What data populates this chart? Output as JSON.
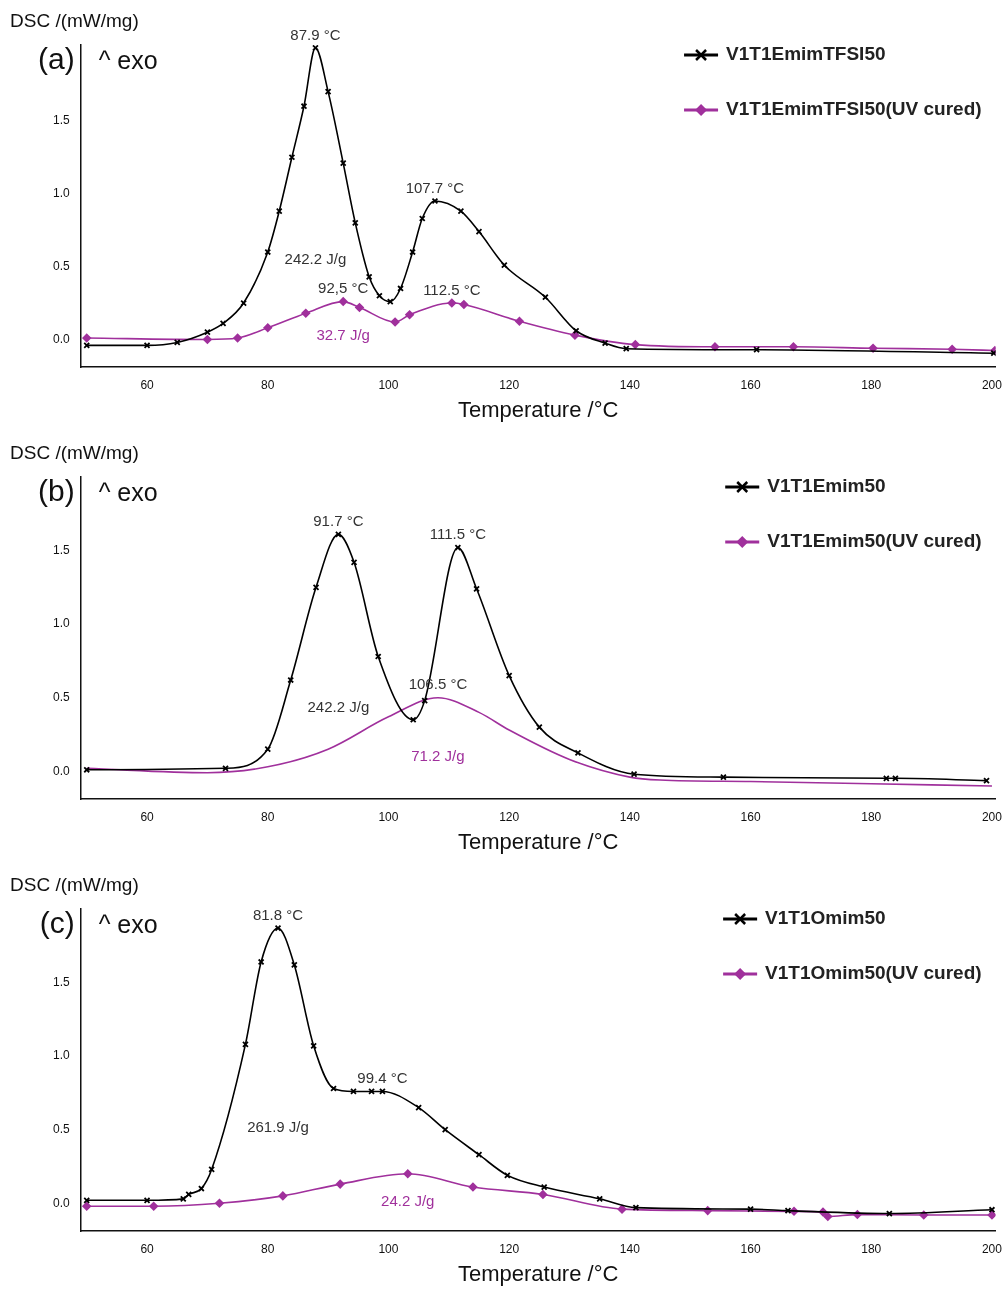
{
  "chart_data": [
    {
      "type": "line",
      "title": "(a)",
      "xlabel": "Temperature /°C",
      "ylabel": "DSC /(mW/mg)",
      "xlim": [
        49,
        200.6
      ],
      "xticks": [
        60,
        80,
        100,
        120,
        140,
        160,
        180,
        200
      ],
      "ylim": [
        -0.19,
        2.02
      ],
      "yticks": [
        {
          "value": 0,
          "label": "0.0"
        },
        {
          "value": 0.5,
          "label": "0.5"
        },
        {
          "value": 1,
          "label": "1.0"
        },
        {
          "value": 1.5,
          "label": "1.5"
        }
      ],
      "grid": false,
      "legend": "top right",
      "series": [
        {
          "name": "V1T1EmimTFSI50",
          "color": "#000000",
          "marker": "cross",
          "x": [
            50,
            60,
            65,
            70,
            72.6,
            76,
            80,
            81.9,
            84,
            86,
            87.9,
            90,
            92.5,
            94.5,
            96.8,
            98.5,
            100.3,
            102,
            104,
            105.6,
            107.7,
            112,
            115,
            119.2,
            126,
            131.1,
            135.9,
            139.4,
            161,
            200.3
          ],
          "values": [
            -0.04,
            -0.04,
            -0.02,
            0.05,
            0.11,
            0.25,
            0.6,
            0.88,
            1.25,
            1.6,
            2.0,
            1.7,
            1.21,
            0.8,
            0.43,
            0.3,
            0.26,
            0.35,
            0.6,
            0.83,
            0.95,
            0.88,
            0.74,
            0.51,
            0.29,
            0.06,
            -0.025,
            -0.063,
            -0.07,
            -0.094
          ]
        },
        {
          "name": "V1T1EmimTFSI50(UV cured)",
          "color": "#a0309c",
          "marker": "diamond",
          "x": [
            50,
            70,
            75,
            80,
            86.3,
            92.5,
            95.2,
            101.1,
            103.5,
            110.5,
            112.5,
            121.7,
            130.9,
            140.9,
            154.1,
            167.1,
            180.3,
            193.4,
            200.5
          ],
          "values": [
            0.01,
            0.0,
            0.01,
            0.08,
            0.18,
            0.26,
            0.22,
            0.12,
            0.17,
            0.25,
            0.24,
            0.125,
            0.03,
            -0.035,
            -0.05,
            -0.05,
            -0.06,
            -0.067,
            -0.075
          ]
        }
      ],
      "annotations": [
        "^ exo",
        {
          "text": "87.9 °C",
          "x": 87.9,
          "y": 2.0
        },
        {
          "text": "107.7 °C",
          "x": 107.7,
          "y": 0.95
        },
        "242.2 J/g",
        {
          "text": "92,5 °C",
          "x": 92.5,
          "y": 0.26
        },
        {
          "text": "112.5 °C",
          "x": 110.5,
          "y": 0.25
        },
        "32.7 J/g"
      ]
    },
    {
      "type": "line",
      "title": "(b)",
      "xlabel": "Temperature /°C",
      "ylabel": "DSC /(mW/mg)",
      "xlim": [
        49,
        200.6
      ],
      "xticks": [
        60,
        80,
        100,
        120,
        140,
        160,
        180,
        200
      ],
      "ylim": [
        -0.19,
        2.0
      ],
      "yticks": [
        {
          "value": 0,
          "label": "0.0"
        },
        {
          "value": 0.5,
          "label": "0.5"
        },
        {
          "value": 1,
          "label": "1.0"
        },
        {
          "value": 1.5,
          "label": "1.5"
        }
      ],
      "grid": false,
      "legend": "top right",
      "series": [
        {
          "name": "V1T1Emim50",
          "color": "#000000",
          "marker": "cross",
          "x": [
            50,
            73,
            80,
            83.8,
            88,
            91.7,
            94.3,
            98.3,
            104.1,
            106,
            111.5,
            114.6,
            120,
            125,
            131.4,
            140.7,
            155.5,
            182.5,
            184,
            199.1
          ],
          "values": [
            0.01,
            0.02,
            0.15,
            0.62,
            1.25,
            1.61,
            1.42,
            0.78,
            0.35,
            0.48,
            1.52,
            1.24,
            0.65,
            0.3,
            0.125,
            -0.02,
            -0.04,
            -0.048,
            -0.048,
            -0.064
          ]
        },
        {
          "name": "V1T1Emim50(UV cured)",
          "color": "#a0309c",
          "marker": "none",
          "x": [
            50,
            70,
            80,
            90,
            100,
            108.2,
            115,
            120,
            130,
            140,
            145,
            160,
            180,
            200
          ],
          "values": [
            0.02,
            -0.01,
            0.03,
            0.15,
            0.37,
            0.5,
            0.4,
            0.28,
            0.08,
            -0.04,
            -0.06,
            -0.07,
            -0.085,
            -0.1
          ]
        }
      ],
      "annotations": [
        "^ exo",
        {
          "text": "91.7 °C",
          "x": 91.7,
          "y": 1.61
        },
        {
          "text": "111.5 °C",
          "x": 111.5,
          "y": 1.52
        },
        {
          "text": "106.5 °C",
          "x": 108.2,
          "y": 0.5
        },
        "242.2 J/g",
        "71.2 J/g"
      ]
    },
    {
      "type": "line",
      "title": "(c)",
      "xlabel": "Temperature /°C",
      "ylabel": "DSC /(mW/mg)",
      "xlim": [
        49,
        200.6
      ],
      "xticks": [
        60,
        80,
        100,
        120,
        140,
        160,
        180,
        200
      ],
      "ylim": [
        -0.19,
        2.0
      ],
      "yticks": [
        {
          "value": 0,
          "label": "0.0"
        },
        {
          "value": 0.5,
          "label": "0.5"
        },
        {
          "value": 1,
          "label": "1.0"
        },
        {
          "value": 1.5,
          "label": "1.5"
        }
      ],
      "grid": false,
      "legend": "top right",
      "series": [
        {
          "name": "V1T1Omim50",
          "color": "#000000",
          "marker": "cross",
          "x": [
            50,
            60,
            66,
            66.9,
            69,
            70.7,
            76.3,
            78.9,
            81.7,
            84.4,
            87.6,
            90.9,
            94.2,
            97.2,
            99,
            105,
            109.4,
            115,
            119.7,
            125.8,
            135,
            141,
            160,
            166.2,
            183,
            200
          ],
          "values": [
            0.02,
            0.02,
            0.03,
            0.06,
            0.1,
            0.23,
            1.08,
            1.64,
            1.87,
            1.62,
            1.07,
            0.78,
            0.76,
            0.76,
            0.76,
            0.65,
            0.5,
            0.33,
            0.19,
            0.11,
            0.03,
            -0.03,
            -0.04,
            -0.05,
            -0.07,
            -0.044
          ]
        },
        {
          "name": "V1T1Omim50(UV cured)",
          "color": "#a0309c",
          "marker": "diamond",
          "x": [
            50,
            61.1,
            72,
            82.5,
            92,
            103.2,
            114,
            125.6,
            138.7,
            152.9,
            167.2,
            172,
            172.8,
            177.7,
            188.7,
            200
          ],
          "values": [
            -0.02,
            -0.02,
            0.0,
            0.05,
            0.13,
            0.2,
            0.11,
            0.06,
            -0.04,
            -0.05,
            -0.055,
            -0.06,
            -0.09,
            -0.077,
            -0.08,
            -0.08
          ]
        }
      ],
      "annotations": [
        "^ exo",
        {
          "text": "81.8 °C",
          "x": 81.7,
          "y": 1.87
        },
        {
          "text": "99.4 °C",
          "x": 99,
          "y": 0.76
        },
        "261.9 J/g",
        "24.2 J/g"
      ]
    }
  ]
}
